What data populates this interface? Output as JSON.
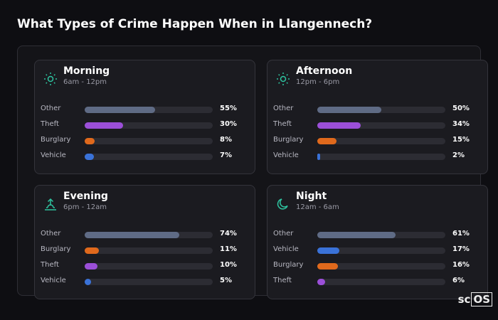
{
  "title": "What Types of Crime Happen When in Llangennech?",
  "xlim": [
    0,
    100
  ],
  "panels": [
    {
      "name": "Morning",
      "time": "6am - 12pm",
      "categories": [
        "Other",
        "Theft",
        "Burglary",
        "Vehicle"
      ],
      "values": [
        55,
        30,
        8,
        7
      ],
      "value_labels": [
        "55%",
        "30%",
        "8%",
        "7%"
      ],
      "colors": [
        "#5f6b85",
        "#9b4fd8",
        "#e0691c",
        "#3a72d8"
      ]
    },
    {
      "name": "Afternoon",
      "time": "12pm - 6pm",
      "categories": [
        "Other",
        "Theft",
        "Burglary",
        "Vehicle"
      ],
      "values": [
        50,
        34,
        15,
        2
      ],
      "value_labels": [
        "50%",
        "34%",
        "15%",
        "2%"
      ],
      "colors": [
        "#5f6b85",
        "#9b4fd8",
        "#e0691c",
        "#3a72d8"
      ]
    },
    {
      "name": "Evening",
      "time": "6pm - 12am",
      "categories": [
        "Other",
        "Burglary",
        "Theft",
        "Vehicle"
      ],
      "values": [
        74,
        11,
        10,
        5
      ],
      "value_labels": [
        "74%",
        "11%",
        "10%",
        "5%"
      ],
      "colors": [
        "#5f6b85",
        "#e0691c",
        "#9b4fd8",
        "#3a72d8"
      ]
    },
    {
      "name": "Night",
      "time": "12am - 6am",
      "categories": [
        "Other",
        "Vehicle",
        "Burglary",
        "Theft"
      ],
      "values": [
        61,
        17,
        16,
        6
      ],
      "value_labels": [
        "61%",
        "17%",
        "16%",
        "6%"
      ],
      "colors": [
        "#5f6b85",
        "#3a72d8",
        "#e0691c",
        "#9b4fd8"
      ]
    }
  ],
  "logo": {
    "prefix": "sc",
    "boxed": "OS"
  }
}
